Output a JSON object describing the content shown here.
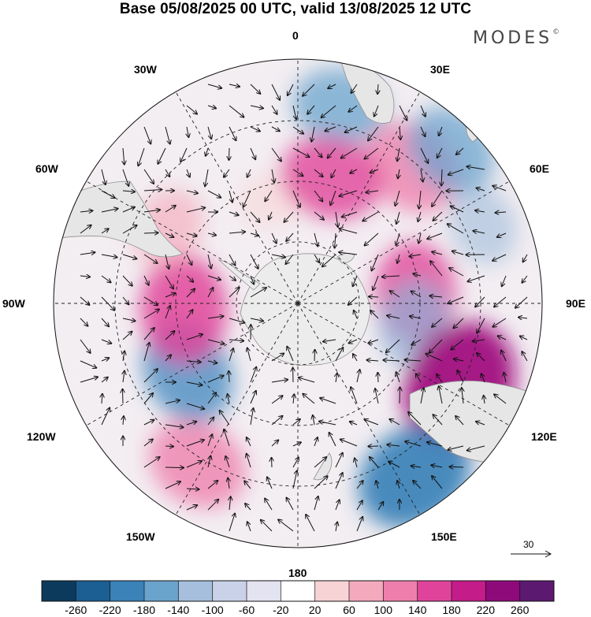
{
  "title": "Base 05/08/2025 00 UTC, valid 13/08/2025 12 UTC",
  "brand": "MODES",
  "brand_mark": "©",
  "longitude_labels": {
    "lon_0": "0",
    "lon_30e": "30E",
    "lon_60e": "60E",
    "lon_90e": "90E",
    "lon_120e": "120E",
    "lon_150e": "150E",
    "lon_180": "180",
    "lon_150w": "150W",
    "lon_120w": "120W",
    "lon_90w": "90W",
    "lon_60w": "60W",
    "lon_30w": "30W"
  },
  "reference_vector": {
    "label": "30"
  },
  "colorbar": {
    "colors": [
      "#0c3a5c",
      "#1c5f92",
      "#3a82b8",
      "#6aa3cc",
      "#a5bfdc",
      "#c9d2e8",
      "#e4e3f1",
      "#ffffff",
      "#f7d3d6",
      "#f4a9bc",
      "#ee7fac",
      "#e0449a",
      "#c41c89",
      "#8e0a7a",
      "#5c1970"
    ],
    "ticks": [
      "-260",
      "-220",
      "-180",
      "-140",
      "-100",
      "-60",
      "-20",
      "20",
      "60",
      "100",
      "140",
      "180",
      "220",
      "260"
    ]
  },
  "map_data": {
    "projection": "south-polar-stereographic",
    "field": "geopotential height anomaly",
    "anomaly_centers": [
      {
        "lon": 12,
        "value": -120,
        "color": "#6aa3cc"
      },
      {
        "lon": 40,
        "value": 140,
        "color": "#ee7fac"
      },
      {
        "lon": 67,
        "value": -80,
        "color": "#a5bfdc"
      },
      {
        "lon": 85,
        "value": 140,
        "color": "#e0449a"
      },
      {
        "lon": 100,
        "value": -100,
        "color": "#8fb2d6"
      },
      {
        "lon": 117,
        "value": 230,
        "color": "#a0127e"
      },
      {
        "lon": 146,
        "value": -190,
        "color": "#3a82b8"
      },
      {
        "lon": 212,
        "value": 140,
        "color": "#ee7fac"
      },
      {
        "lon": 238,
        "value": -150,
        "color": "#4f8fc2"
      },
      {
        "lon": 267,
        "value": 160,
        "color": "#e0449a"
      },
      {
        "lon": 300,
        "value": 80,
        "color": "#f4a9bc"
      },
      {
        "lon": 346,
        "value": 40,
        "color": "#f7d3d6"
      },
      {
        "lon": 15,
        "value": 140,
        "color": "#e0449a"
      },
      {
        "lon": 45,
        "value": -120,
        "color": "#6aa3cc"
      }
    ]
  }
}
